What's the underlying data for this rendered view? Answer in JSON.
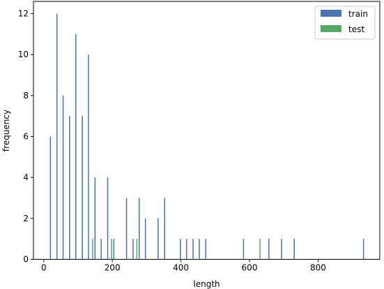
{
  "chart_data": {
    "type": "bar",
    "title": "",
    "xlabel": "length",
    "ylabel": "frequency",
    "xlim": [
      -30,
      980
    ],
    "ylim": [
      0,
      12.6
    ],
    "x_ticks": [
      0,
      200,
      400,
      600,
      800
    ],
    "y_ticks": [
      0,
      2,
      4,
      6,
      8,
      10,
      12
    ],
    "grid": false,
    "legend_position": "top-right",
    "bin_width": 18.4,
    "series": [
      {
        "name": "train",
        "color": "#4c72b0",
        "bins": [
          {
            "x": 21,
            "value": 6
          },
          {
            "x": 40,
            "value": 12
          },
          {
            "x": 58,
            "value": 8
          },
          {
            "x": 77,
            "value": 7
          },
          {
            "x": 95,
            "value": 11
          },
          {
            "x": 114,
            "value": 7
          },
          {
            "x": 132,
            "value": 10
          },
          {
            "x": 151,
            "value": 4
          },
          {
            "x": 169,
            "value": 1
          },
          {
            "x": 188,
            "value": 4
          },
          {
            "x": 206,
            "value": 1
          },
          {
            "x": 243,
            "value": 3
          },
          {
            "x": 262,
            "value": 1
          },
          {
            "x": 280,
            "value": 3
          },
          {
            "x": 298,
            "value": 2
          },
          {
            "x": 335,
            "value": 2
          },
          {
            "x": 354,
            "value": 3
          },
          {
            "x": 400,
            "value": 1
          },
          {
            "x": 418,
            "value": 1
          },
          {
            "x": 437,
            "value": 1
          },
          {
            "x": 455,
            "value": 1
          },
          {
            "x": 474,
            "value": 1
          },
          {
            "x": 584,
            "value": 1
          },
          {
            "x": 658,
            "value": 1
          },
          {
            "x": 695,
            "value": 1
          },
          {
            "x": 732,
            "value": 1
          },
          {
            "x": 934,
            "value": 1
          }
        ]
      },
      {
        "name": "test",
        "color": "#55a868",
        "bins": [
          {
            "x": 141,
            "value": 1
          },
          {
            "x": 196,
            "value": 1
          },
          {
            "x": 270,
            "value": 1
          },
          {
            "x": 629,
            "value": 1
          }
        ]
      }
    ]
  }
}
